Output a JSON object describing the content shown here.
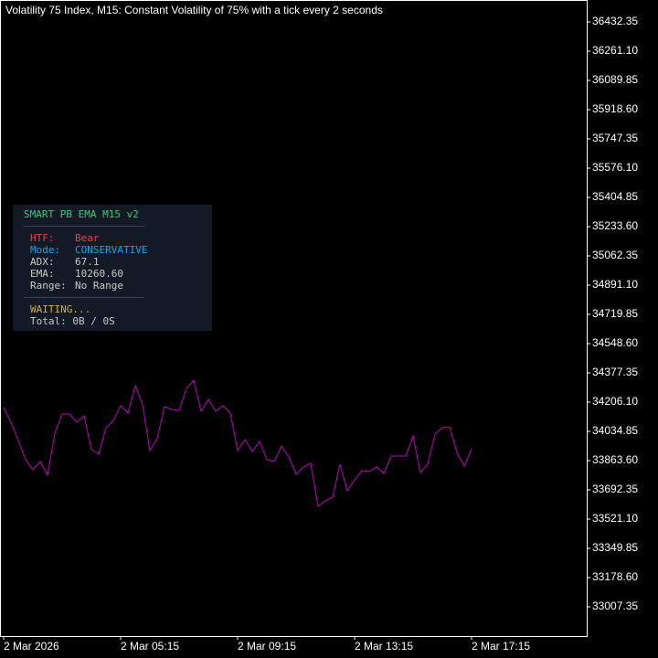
{
  "chart_data": {
    "type": "line",
    "title": "Volatility 75 Index, M15:  Constant Volatility of 75% with a tick every 2 seconds",
    "categories": [
      "2 Mar 2026",
      null,
      null,
      null,
      null,
      null,
      null,
      null,
      null,
      null,
      null,
      null,
      null,
      null,
      null,
      null,
      "2 Mar 05:15",
      null,
      null,
      null,
      null,
      null,
      null,
      null,
      null,
      null,
      null,
      null,
      null,
      null,
      null,
      null,
      "2 Mar 09:15",
      null,
      null,
      null,
      null,
      null,
      null,
      null,
      null,
      null,
      null,
      null,
      null,
      null,
      null,
      null,
      "2 Mar 13:15",
      null,
      null,
      null,
      null,
      null,
      null,
      null,
      null,
      null,
      null,
      null,
      null,
      null,
      null,
      null,
      "2 Mar 17:15"
    ],
    "values": [
      34173.99,
      34088.37,
      33981.33,
      33868.95,
      33810.08,
      33858.25,
      33777.97,
      34024.15,
      34136.53,
      34136.53,
      34088.37,
      34125.83,
      33927.82,
      33901.06,
      34056.26,
      34099.07,
      34184.69,
      34141.88,
      34302.43,
      34190.05,
      33922.47,
      33992.04,
      34179.34,
      34163.29,
      34157.94,
      34286.37,
      34334.54,
      34152.58,
      34222.15,
      34152.58,
      34184.69,
      34141.88,
      33922.47,
      33986.69,
      33917.12,
      33975.98,
      33868.95,
      33858.25,
      33949.22,
      33885.01,
      33783.33,
      33826.14,
      33847.55,
      33596.02,
      33628.13,
      33649.54,
      33842.19,
      33687.0,
      33751.22,
      33804.72,
      33799.38,
      33826.14,
      33788.68,
      33890.36,
      33890.36,
      33890.36,
      34008.09,
      33794.03,
      33842.19,
      34018.8,
      34056.26,
      34061.61,
      33911.76,
      33831.49,
      33933.17
    ],
    "color": "#c000c0",
    "ylim": [
      32836.1,
      36560.79
    ],
    "yticks": [
      36432.35,
      {
        "value": 36261.1,
        "label": "36261.10"
      },
      36089.85,
      {
        "value": 35918.6,
        "label": "35918.60"
      },
      35747.35,
      {
        "value": 35576.1,
        "label": "35576.10"
      },
      35404.85,
      {
        "value": 35233.6,
        "label": "35233.60"
      },
      35062.35,
      {
        "value": 34891.1,
        "label": "34891.10"
      },
      34719.85,
      {
        "value": 34548.6,
        "label": "34548.60"
      },
      34377.35,
      {
        "value": 34206.1,
        "label": "34206.10"
      },
      34034.85,
      {
        "value": 33863.6,
        "label": "33863.60"
      },
      33692.35,
      {
        "value": 33521.1,
        "label": "33521.10"
      },
      33349.85,
      {
        "value": 33178.6,
        "label": "33178.60"
      },
      33007.35
    ],
    "grid": false
  },
  "panel": {
    "title": "SMART PB EMA M15 v2",
    "rows": [
      [
        "HTF:",
        "Bear"
      ],
      [
        "Mode:",
        "CONSERVATIVE"
      ],
      [
        "ADX:",
        "67.1"
      ],
      [
        "EMA:",
        "10260.60"
      ],
      [
        "Range:",
        "No Range"
      ]
    ],
    "status": "WAITING...",
    "total": "Total: 0B / 0S"
  }
}
